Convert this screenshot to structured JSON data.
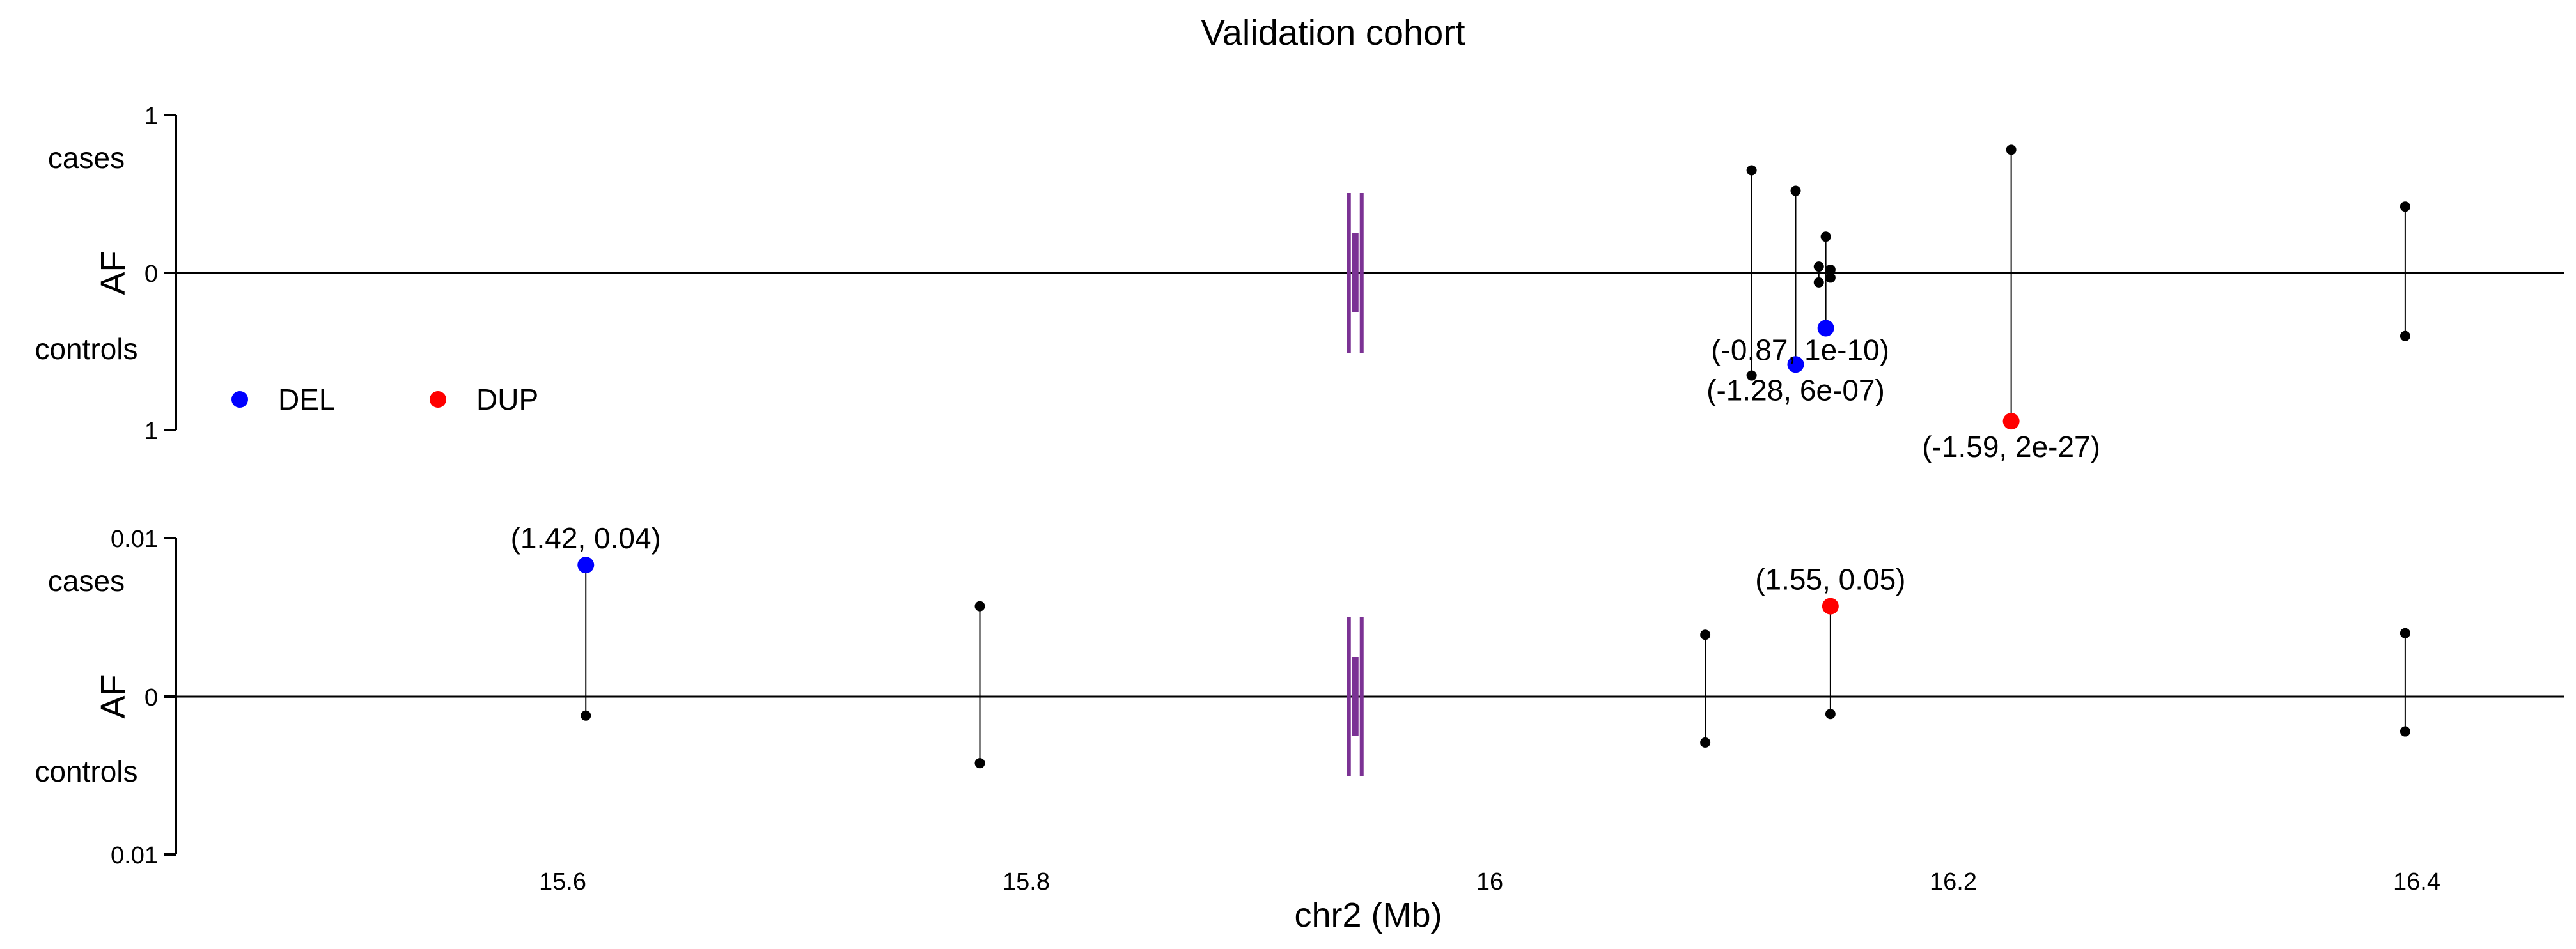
{
  "chart_data": {
    "type": "scatter",
    "title": "Validation cohort",
    "xlabel": "chr2 (Mb)",
    "x_ticks": [
      15.6,
      15.8,
      16.0,
      16.2,
      16.4
    ],
    "xlim": [
      15.42,
      16.45
    ],
    "legend": {
      "placement": "left",
      "entries": [
        {
          "label": "DEL",
          "color": "#0000ff"
        },
        {
          "label": "DUP",
          "color": "#ff0000"
        }
      ]
    },
    "gene_marker": {
      "x": 15.942,
      "color": "#7b3294"
    },
    "panels": [
      {
        "name": "top",
        "ylabel": "AF",
        "upper_label": "cases",
        "lower_label": "controls",
        "y_tick_top": "1",
        "y_tick_mid": "0",
        "y_tick_bottom": "1",
        "ylim": [
          -1,
          1
        ],
        "points": [
          {
            "x": 16.113,
            "cases": 0.65,
            "controls": 0.65,
            "type": "none"
          },
          {
            "x": 16.132,
            "cases": 0.52,
            "controls": 0.58,
            "type": "DEL",
            "annotation": "(-1.28, 6e-07)"
          },
          {
            "x": 16.142,
            "cases": 0.04,
            "controls": 0.06,
            "type": "none"
          },
          {
            "x": 16.145,
            "cases": 0.23,
            "controls": 0.35,
            "type": "DEL",
            "annotation": "(-0.87, 1e-10)"
          },
          {
            "x": 16.147,
            "cases": 0.02,
            "controls": 0.03,
            "type": "none"
          },
          {
            "x": 16.225,
            "cases": 0.78,
            "controls": 0.94,
            "type": "DUP",
            "annotation": "(-1.59, 2e-27)"
          },
          {
            "x": 16.395,
            "cases": 0.42,
            "controls": 0.4,
            "type": "none"
          }
        ]
      },
      {
        "name": "bottom",
        "ylabel": "AF",
        "upper_label": "cases",
        "lower_label": "controls",
        "y_tick_top": "0.01",
        "y_tick_mid": "0",
        "y_tick_bottom": "0.01",
        "ylim": [
          -0.01,
          0.01
        ],
        "points": [
          {
            "x": 15.61,
            "cases": 0.0083,
            "controls": 0.0012,
            "type": "DEL",
            "annotation": "(1.42, 0.04)"
          },
          {
            "x": 15.78,
            "cases": 0.0057,
            "controls": 0.0042,
            "type": "none"
          },
          {
            "x": 16.093,
            "cases": 0.0039,
            "controls": 0.0029,
            "type": "none"
          },
          {
            "x": 16.147,
            "cases": 0.0057,
            "controls": 0.0011,
            "type": "DUP",
            "annotation": "(1.55, 0.05)"
          },
          {
            "x": 16.395,
            "cases": 0.004,
            "controls": 0.0022,
            "type": "none"
          }
        ]
      }
    ]
  }
}
